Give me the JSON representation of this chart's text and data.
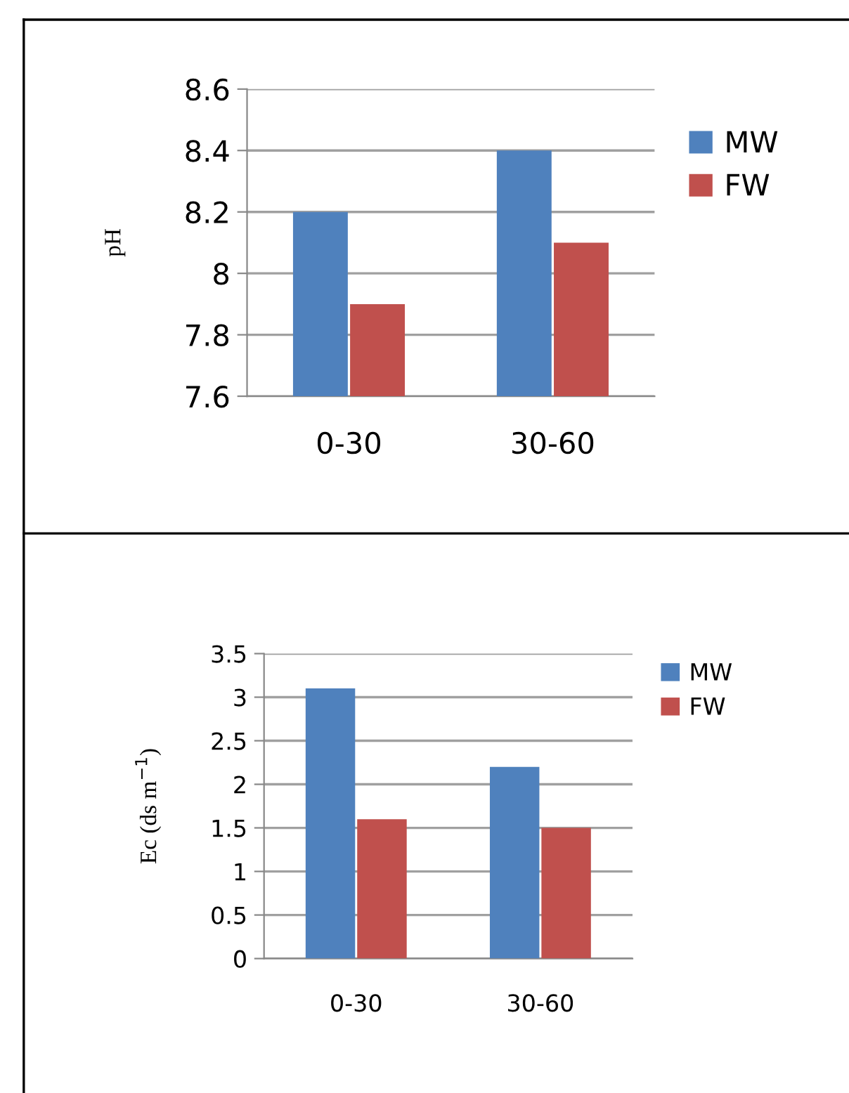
{
  "chart_data": [
    {
      "type": "bar",
      "categories": [
        "0-30",
        "30-60"
      ],
      "ylabel": "pH",
      "ylim": [
        7.6,
        8.6
      ],
      "yticks": [
        {
          "value": 7.6,
          "label": "7.6"
        },
        {
          "value": 7.8,
          "label": "7.8"
        },
        {
          "value": 8.0,
          "label": "8"
        },
        {
          "value": 8.2,
          "label": "8.2"
        },
        {
          "value": 8.4,
          "label": "8.4"
        },
        {
          "value": 8.6,
          "label": "8.6"
        }
      ],
      "grid": "y",
      "legend": "right",
      "series": [
        {
          "name": "MW",
          "color": "#4f81bd",
          "values": [
            8.2,
            8.4
          ]
        },
        {
          "name": "FW",
          "color": "#c0504d",
          "values": [
            7.9,
            8.1
          ]
        }
      ]
    },
    {
      "type": "bar",
      "categories": [
        "0-30",
        "30-60"
      ],
      "ylabel": "Ec (ds m$^{−1}$)",
      "ylim": [
        0,
        3.5
      ],
      "yticks": [
        0,
        {
          "value": 0.5,
          "label": "0.5"
        },
        1,
        {
          "value": 1.5,
          "label": "1.5"
        },
        2,
        {
          "value": 2.5,
          "label": "2.5"
        },
        3,
        {
          "value": 3.5,
          "label": "3.5"
        }
      ],
      "grid": "y",
      "legend": "top right",
      "series": [
        {
          "name": "MW",
          "color": "#4f81bd",
          "values": [
            3.1,
            2.2
          ]
        },
        {
          "name": "FW",
          "color": "#c0504d",
          "values": [
            1.6,
            1.5
          ]
        }
      ]
    }
  ]
}
